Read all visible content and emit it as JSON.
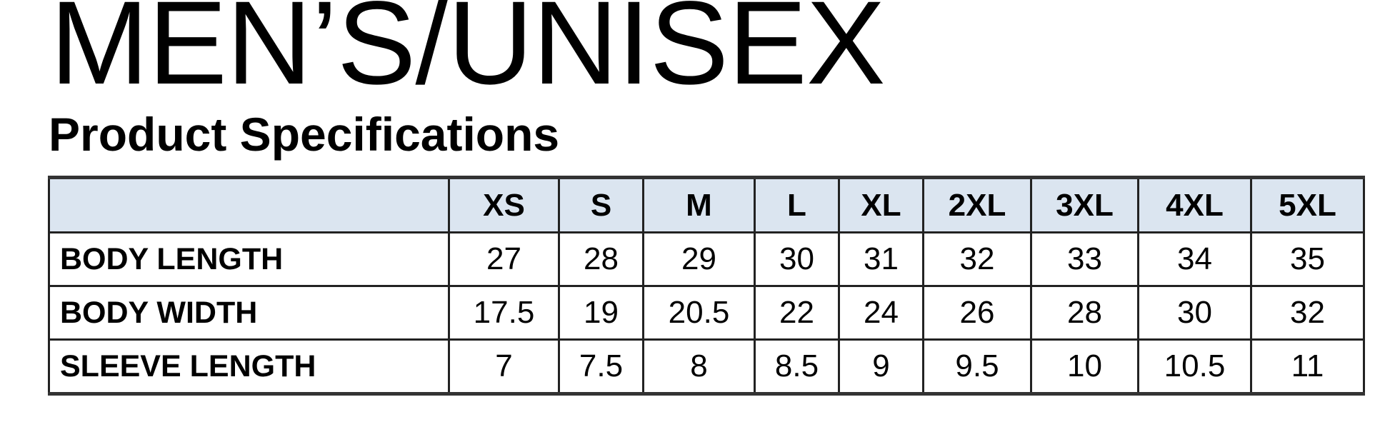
{
  "title": "MEN’S/UNISEX",
  "subtitle": "Product Specifications",
  "table": {
    "header": [
      "",
      "XS",
      "S",
      "M",
      "L",
      "XL",
      "2XL",
      "3XL",
      "4XL",
      "5XL"
    ],
    "rows": [
      {
        "label": "BODY LENGTH",
        "values": [
          "27",
          "28",
          "29",
          "30",
          "31",
          "32",
          "33",
          "34",
          "35"
        ]
      },
      {
        "label": "BODY WIDTH",
        "values": [
          "17.5",
          "19",
          "20.5",
          "22",
          "24",
          "26",
          "28",
          "30",
          "32"
        ]
      },
      {
        "label": "SLEEVE LENGTH",
        "values": [
          "7",
          "7.5",
          "8",
          "8.5",
          "9",
          "9.5",
          "10",
          "10.5",
          "11"
        ]
      }
    ]
  },
  "colors": {
    "header_bg": "#dbe5f0",
    "border": "#222222"
  }
}
